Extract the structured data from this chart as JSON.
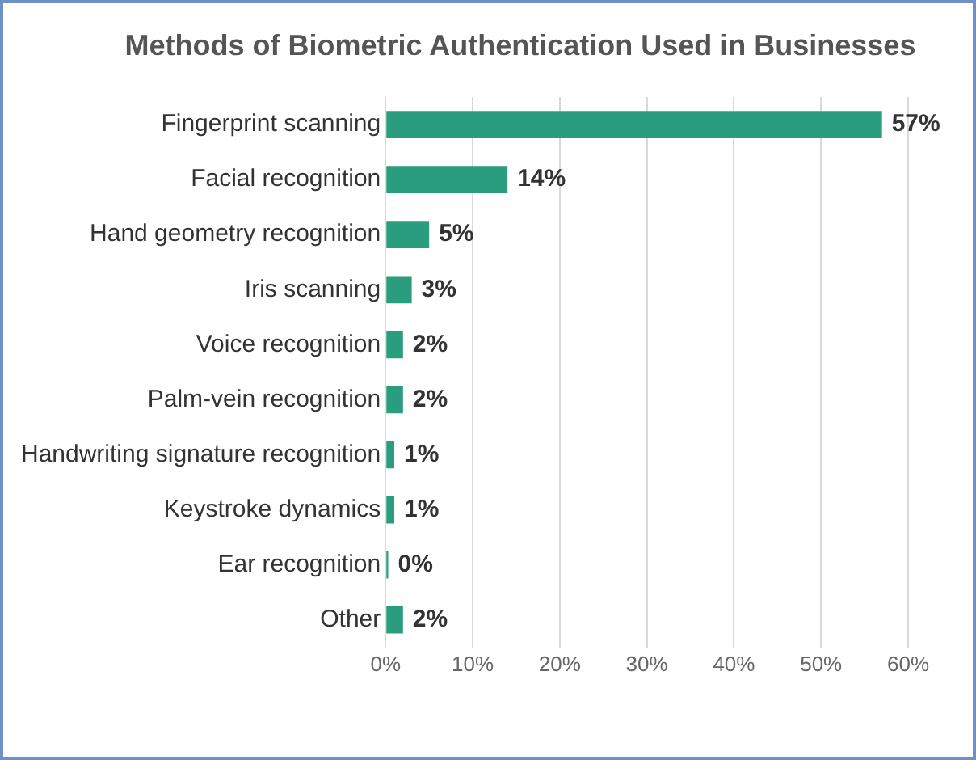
{
  "chart_data": {
    "type": "bar",
    "orientation": "horizontal",
    "title": "Methods of Biometric Authentication Used in Businesses",
    "categories": [
      "Fingerprint scanning",
      "Facial recognition",
      "Hand geometry recognition",
      "Iris scanning",
      "Voice recognition",
      "Palm-vein recognition",
      "Handwriting signature recognition",
      "Keystroke dynamics",
      "Ear recognition",
      "Other"
    ],
    "values": [
      57,
      14,
      5,
      3,
      2,
      2,
      1,
      1,
      0.3,
      2
    ],
    "value_labels": [
      "57%",
      "14%",
      "5%",
      "3%",
      "2%",
      "2%",
      "1%",
      "1%",
      "0%",
      "2%"
    ],
    "color": "#2a9d7f",
    "xlim": [
      0,
      60
    ],
    "xticks": [
      {
        "value": 0,
        "label": "0%"
      },
      {
        "value": 10,
        "label": "10%"
      },
      {
        "value": 20,
        "label": "20%"
      },
      {
        "value": 30,
        "label": "30%"
      },
      {
        "value": 40,
        "label": "40%"
      },
      {
        "value": 50,
        "label": "50%"
      },
      {
        "value": 60,
        "label": "60%"
      }
    ],
    "grid": "x",
    "legend": false
  }
}
